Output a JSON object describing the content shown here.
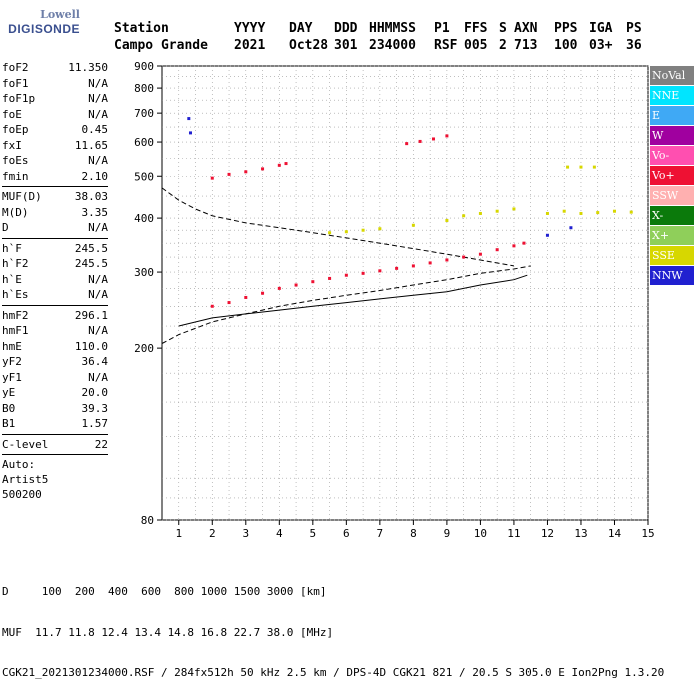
{
  "logo": {
    "line1": "Lowell",
    "line2": "DIGISONDE"
  },
  "header": {
    "row1": [
      "Station",
      "YYYY",
      "DAY",
      "DDD",
      "HHMMSS",
      "P1",
      "FFS",
      "S",
      "AXN",
      "PPS",
      "IGA",
      "PS"
    ],
    "row2": [
      "Campo Grande",
      "2021",
      "Oct28",
      "301",
      "234000",
      "RSF",
      "005",
      "2",
      "713",
      "100",
      "03+",
      "36"
    ]
  },
  "params": {
    "group1": [
      {
        "k": "foF2",
        "v": "11.350"
      },
      {
        "k": "foF1",
        "v": "N/A"
      },
      {
        "k": "foF1p",
        "v": "N/A"
      },
      {
        "k": "foE",
        "v": "N/A"
      },
      {
        "k": "foEp",
        "v": "0.45"
      },
      {
        "k": "fxI",
        "v": "11.65"
      },
      {
        "k": "foEs",
        "v": "N/A"
      },
      {
        "k": "fmin",
        "v": "2.10"
      }
    ],
    "group2": [
      {
        "k": "MUF(D)",
        "v": "38.03"
      },
      {
        "k": "M(D)",
        "v": "3.35"
      },
      {
        "k": "D",
        "v": "N/A"
      }
    ],
    "group3": [
      {
        "k": "h`F",
        "v": "245.5"
      },
      {
        "k": "h`F2",
        "v": "245.5"
      },
      {
        "k": "h`E",
        "v": "N/A"
      },
      {
        "k": "h`Es",
        "v": "N/A"
      }
    ],
    "group4": [
      {
        "k": "hmF2",
        "v": "296.1"
      },
      {
        "k": "hmF1",
        "v": "N/A"
      },
      {
        "k": "hmE",
        "v": "110.0"
      },
      {
        "k": "yF2",
        "v": "36.4"
      },
      {
        "k": "yF1",
        "v": "N/A"
      },
      {
        "k": "yE",
        "v": "20.0"
      },
      {
        "k": "B0",
        "v": "39.3"
      },
      {
        "k": "B1",
        "v": "1.57"
      }
    ],
    "group5": [
      {
        "k": "C-level",
        "v": "22"
      }
    ],
    "auto": [
      "Auto:",
      "Artist5",
      "500200"
    ]
  },
  "legend": [
    {
      "label": "NoVal",
      "color": "#808080"
    },
    {
      "label": "NNE",
      "color": "#00e5ff"
    },
    {
      "label": "E",
      "color": "#3fa9f5"
    },
    {
      "label": "W",
      "color": "#a0009f"
    },
    {
      "label": "Vo-",
      "color": "#ff4fb0"
    },
    {
      "label": "Vo+",
      "color": "#ee1133"
    },
    {
      "label": "SSW",
      "color": "#ffb0b0"
    },
    {
      "label": "X-",
      "color": "#0b7a0b"
    },
    {
      "label": "X+",
      "color": "#8fcf5a"
    },
    {
      "label": "SSE",
      "color": "#d7d700"
    },
    {
      "label": "NNW",
      "color": "#2020d0"
    }
  ],
  "footer": {
    "line1": "D     100  200  400  600  800 1000 1500 3000 [km]",
    "line2": "MUF  11.7 11.8 12.4 13.4 14.8 16.8 22.7 38.0 [MHz]",
    "line3": "CGK21_2021301234000.RSF / 284fx512h 50 kHz 2.5 km / DPS-4D CGK21 821 / 20.5 S 305.0 E Ion2Png 1.3.20"
  },
  "chart_data": {
    "type": "scatter",
    "xlim": [
      0.5,
      15
    ],
    "ylim": [
      80,
      900
    ],
    "x_ticks": [
      1,
      2,
      3,
      4,
      5,
      6,
      7,
      8,
      9,
      10,
      11,
      12,
      13,
      14,
      15
    ],
    "y_ticks": [
      80,
      200,
      300,
      400,
      500,
      600,
      700,
      800,
      900
    ],
    "y_scale": "log",
    "grid": "dotted",
    "series": [
      {
        "color": "#ee1133",
        "points": [
          [
            2.0,
            250
          ],
          [
            2.5,
            255
          ],
          [
            3.0,
            262
          ],
          [
            3.5,
            268
          ],
          [
            4.0,
            275
          ],
          [
            4.5,
            280
          ],
          [
            5.0,
            285
          ],
          [
            5.5,
            290
          ],
          [
            6.0,
            295
          ],
          [
            6.5,
            298
          ],
          [
            7.0,
            302
          ],
          [
            7.5,
            306
          ],
          [
            8.0,
            310
          ],
          [
            8.5,
            315
          ],
          [
            9.0,
            320
          ],
          [
            9.5,
            325
          ],
          [
            10.0,
            330
          ],
          [
            10.5,
            338
          ],
          [
            11.0,
            345
          ],
          [
            11.3,
            350
          ]
        ]
      },
      {
        "color": "#ee1133",
        "points": [
          [
            2.0,
            495
          ],
          [
            2.5,
            505
          ],
          [
            3.0,
            512
          ],
          [
            3.5,
            520
          ],
          [
            4.0,
            530
          ],
          [
            4.2,
            535
          ]
        ]
      },
      {
        "color": "#ee1133",
        "points": [
          [
            7.8,
            595
          ],
          [
            8.2,
            602
          ],
          [
            8.6,
            610
          ],
          [
            9.0,
            620
          ]
        ]
      },
      {
        "color": "#d7d700",
        "points": [
          [
            5.5,
            370
          ],
          [
            6.0,
            372
          ],
          [
            6.5,
            375
          ],
          [
            7.0,
            378
          ],
          [
            8.0,
            385
          ],
          [
            9.0,
            395
          ],
          [
            9.5,
            405
          ],
          [
            10.0,
            410
          ],
          [
            10.5,
            415
          ],
          [
            11.0,
            420
          ],
          [
            12.0,
            410
          ],
          [
            12.5,
            415
          ],
          [
            13.0,
            410
          ],
          [
            13.5,
            412
          ],
          [
            14.0,
            415
          ],
          [
            14.5,
            413
          ]
        ]
      },
      {
        "color": "#d7d700",
        "points": [
          [
            12.6,
            525
          ],
          [
            13.0,
            525
          ],
          [
            13.4,
            525
          ]
        ]
      },
      {
        "color": "#2020d0",
        "points": [
          [
            1.3,
            680
          ],
          [
            1.35,
            630
          ],
          [
            12.0,
            365
          ],
          [
            12.7,
            380
          ]
        ]
      }
    ],
    "lines": [
      {
        "style": "dashed",
        "color": "#000000",
        "points": [
          [
            0.5,
            470
          ],
          [
            1,
            440
          ],
          [
            1.5,
            420
          ],
          [
            2,
            405
          ],
          [
            3,
            390
          ],
          [
            4,
            380
          ],
          [
            5,
            370
          ],
          [
            6,
            360
          ],
          [
            7,
            350
          ],
          [
            8,
            340
          ],
          [
            9,
            330
          ],
          [
            10,
            320
          ],
          [
            11,
            310
          ]
        ]
      },
      {
        "style": "dashed",
        "color": "#000000",
        "points": [
          [
            0.5,
            205
          ],
          [
            1,
            215
          ],
          [
            2,
            230
          ],
          [
            3,
            240
          ],
          [
            4,
            250
          ],
          [
            5,
            258
          ],
          [
            6,
            265
          ],
          [
            7,
            272
          ],
          [
            8,
            280
          ],
          [
            9,
            288
          ],
          [
            10,
            298
          ],
          [
            11,
            305
          ],
          [
            11.5,
            310
          ]
        ]
      },
      {
        "style": "solid",
        "color": "#000000",
        "points": [
          [
            1,
            225
          ],
          [
            2,
            235
          ],
          [
            3,
            240
          ],
          [
            4,
            245
          ],
          [
            5,
            250
          ],
          [
            6,
            255
          ],
          [
            7,
            260
          ],
          [
            8,
            265
          ],
          [
            9,
            270
          ],
          [
            10,
            280
          ],
          [
            11,
            288
          ],
          [
            11.4,
            295
          ]
        ]
      }
    ]
  }
}
